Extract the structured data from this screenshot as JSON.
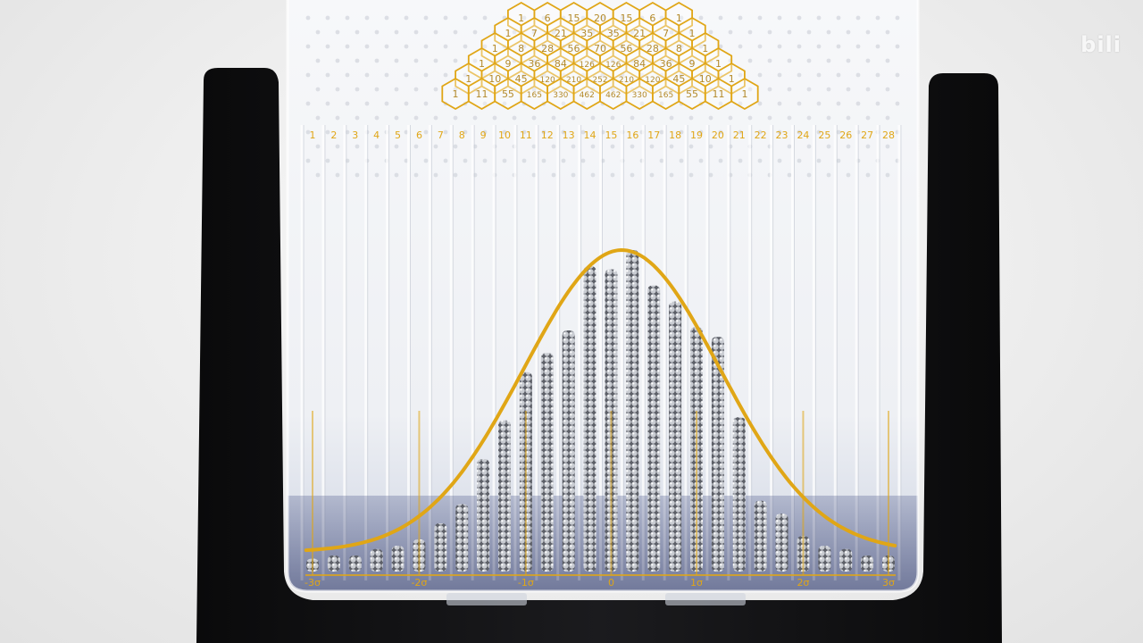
{
  "watermark": {
    "text": "",
    "logo": "bili",
    "logo_color": "#ffffff"
  },
  "device": {
    "frame_color": "#121214",
    "panel_tint": "#eef1f6",
    "base_tint": "#2f3a66",
    "curve_color": "#e0a616",
    "ball_color": "#b9bcc2"
  },
  "pascal_triangle": {
    "visible_rows": [
      [
        "1",
        "6",
        "15",
        "20",
        "15",
        "6",
        "1"
      ],
      [
        "1",
        "7",
        "21",
        "35",
        "35",
        "21",
        "7",
        "1"
      ],
      [
        "1",
        "8",
        "28",
        "56",
        "70",
        "56",
        "28",
        "8",
        "1"
      ],
      [
        "1",
        "9",
        "36",
        "84",
        "126",
        "126",
        "84",
        "36",
        "9",
        "1"
      ],
      [
        "1",
        "10",
        "45",
        "120",
        "210",
        "252",
        "210",
        "120",
        "45",
        "10",
        "1"
      ],
      [
        "1",
        "11",
        "55",
        "165",
        "330",
        "462",
        "462",
        "330",
        "165",
        "55",
        "11",
        "1"
      ]
    ]
  },
  "bin_numbers": [
    "1",
    "2",
    "3",
    "4",
    "5",
    "6",
    "7",
    "8",
    "9",
    "10",
    "11",
    "12",
    "13",
    "14",
    "15",
    "16",
    "17",
    "18",
    "19",
    "20",
    "21",
    "22",
    "23",
    "24",
    "25",
    "26",
    "27",
    "28"
  ],
  "bin_fill_levels": [
    0.04,
    0.05,
    0.05,
    0.07,
    0.08,
    0.1,
    0.15,
    0.21,
    0.35,
    0.47,
    0.62,
    0.68,
    0.75,
    0.95,
    0.94,
    1.0,
    0.89,
    0.84,
    0.76,
    0.73,
    0.48,
    0.22,
    0.18,
    0.11,
    0.08,
    0.07,
    0.05,
    0.05
  ],
  "sigma_labels": [
    {
      "text": "-3σ",
      "bin": 0
    },
    {
      "text": "-2σ",
      "bin": 5
    },
    {
      "text": "-1σ",
      "bin": 10
    },
    {
      "text": "0",
      "bin": 14
    },
    {
      "text": "1σ",
      "bin": 18
    },
    {
      "text": "2σ",
      "bin": 23
    },
    {
      "text": "3σ",
      "bin": 27
    }
  ]
}
